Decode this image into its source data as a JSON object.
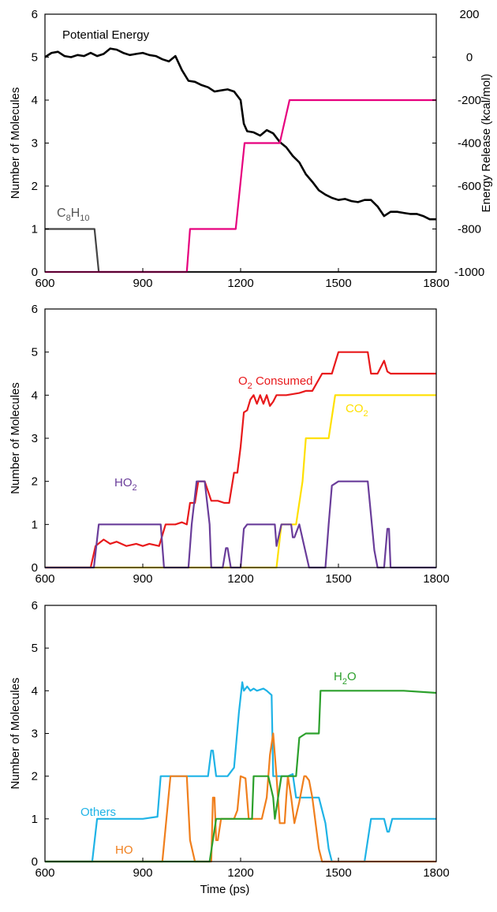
{
  "chart_data": [
    {
      "type": "line",
      "xlim": [
        600,
        1800
      ],
      "ylim": [
        0,
        6
      ],
      "y2lim": [
        -1000,
        200
      ],
      "x_ticks": [
        "600",
        "900",
        "1200",
        "1500",
        "1800"
      ],
      "y_ticks": [
        "0",
        "1",
        "2",
        "3",
        "4",
        "5",
        "6"
      ],
      "y2_ticks": [
        "-1000",
        "-800",
        "-600",
        "-400",
        "-200",
        "0",
        "200"
      ],
      "ylabel": "Number of Molecules",
      "y2label": "Energy Release (kcal/mol)",
      "grid": false,
      "series": [
        {
          "name": "Potential Energy",
          "axis": "right",
          "color": "#000000",
          "x": [
            600,
            620,
            640,
            660,
            680,
            700,
            720,
            740,
            760,
            780,
            800,
            820,
            840,
            860,
            880,
            900,
            920,
            940,
            960,
            980,
            1000,
            1020,
            1040,
            1060,
            1080,
            1100,
            1120,
            1140,
            1160,
            1180,
            1200,
            1210,
            1220,
            1240,
            1260,
            1280,
            1300,
            1320,
            1340,
            1360,
            1380,
            1400,
            1420,
            1440,
            1460,
            1480,
            1500,
            1520,
            1540,
            1560,
            1580,
            1600,
            1620,
            1640,
            1660,
            1680,
            1700,
            1720,
            1740,
            1760,
            1780,
            1800
          ],
          "values": [
            0,
            20,
            25,
            5,
            0,
            10,
            5,
            20,
            5,
            15,
            40,
            35,
            20,
            10,
            15,
            20,
            10,
            5,
            -10,
            -20,
            5,
            -60,
            -110,
            -115,
            -130,
            -140,
            -160,
            -155,
            -150,
            -160,
            -200,
            -310,
            -345,
            -350,
            -365,
            -340,
            -355,
            -395,
            -420,
            -460,
            -490,
            -545,
            -580,
            -620,
            -640,
            -655,
            -665,
            -660,
            -670,
            -675,
            -665,
            -665,
            -695,
            -740,
            -720,
            -720,
            -725,
            -730,
            -730,
            -740,
            -755,
            -755
          ]
        },
        {
          "name": "C8H10",
          "axis": "left",
          "color": "#444444",
          "x": [
            600,
            752,
            765,
            1800
          ],
          "values": [
            1,
            1,
            0,
            0
          ]
        },
        {
          "name": "",
          "axis": "left",
          "color": "#e6007e",
          "x": [
            600,
            1035,
            1045,
            1185,
            1212,
            1320,
            1350,
            1800
          ],
          "values": [
            0,
            0,
            1,
            1,
            3,
            3,
            4,
            4
          ]
        }
      ],
      "annotations": [
        {
          "text": "Potential Energy",
          "series": "Potential Energy"
        },
        {
          "text_main": "C",
          "sub1": "8",
          "text_mid": "H",
          "sub2": "10",
          "series": "C8H10"
        }
      ]
    },
    {
      "type": "line",
      "xlim": [
        600,
        1800
      ],
      "ylim": [
        0,
        6
      ],
      "x_ticks": [
        "600",
        "900",
        "1200",
        "1500",
        "1800"
      ],
      "y_ticks": [
        "0",
        "1",
        "2",
        "3",
        "4",
        "5",
        "6"
      ],
      "ylabel": "Number of Molecules",
      "grid": false,
      "series": [
        {
          "name": "O2 Consumed",
          "color": "#e8191b",
          "x": [
            600,
            740,
            755,
            780,
            800,
            820,
            850,
            880,
            900,
            920,
            950,
            970,
            1000,
            1020,
            1035,
            1045,
            1060,
            1070,
            1090,
            1110,
            1130,
            1150,
            1165,
            1180,
            1190,
            1200,
            1210,
            1220,
            1230,
            1240,
            1250,
            1260,
            1270,
            1280,
            1290,
            1300,
            1310,
            1320,
            1340,
            1380,
            1400,
            1420,
            1450,
            1480,
            1500,
            1530,
            1560,
            1590,
            1600,
            1620,
            1640,
            1650,
            1660,
            1680,
            1720,
            1760,
            1800
          ],
          "values": [
            0,
            0,
            0.5,
            0.65,
            0.55,
            0.6,
            0.5,
            0.55,
            0.5,
            0.55,
            0.5,
            1.0,
            1.0,
            1.05,
            1.0,
            1.5,
            1.5,
            2.0,
            2.0,
            1.55,
            1.55,
            1.5,
            1.5,
            2.2,
            2.2,
            2.8,
            3.6,
            3.65,
            3.9,
            4.0,
            3.8,
            4.0,
            3.8,
            4.0,
            3.75,
            3.85,
            4.0,
            4.0,
            4.0,
            4.05,
            4.1,
            4.1,
            4.5,
            4.5,
            5.0,
            5.0,
            5.0,
            5.0,
            4.5,
            4.5,
            4.8,
            4.55,
            4.5,
            4.5,
            4.5,
            4.5,
            4.5
          ]
        },
        {
          "name": "CO2",
          "color": "#ffe000",
          "x": [
            600,
            1310,
            1325,
            1370,
            1390,
            1400,
            1420,
            1440,
            1470,
            1490,
            1800
          ],
          "values": [
            0,
            0,
            1,
            1,
            2.0,
            3,
            3,
            3,
            3,
            4,
            4
          ]
        },
        {
          "name": "HO2",
          "color": "#6a3d9a",
          "x": [
            600,
            750,
            765,
            955,
            965,
            1040,
            1050,
            1065,
            1090,
            1105,
            1110,
            1120,
            1145,
            1155,
            1160,
            1170,
            1175,
            1200,
            1210,
            1220,
            1245,
            1290,
            1305,
            1310,
            1325,
            1355,
            1360,
            1365,
            1380,
            1395,
            1410,
            1425,
            1440,
            1460,
            1470,
            1480,
            1500,
            1530,
            1580,
            1590,
            1610,
            1620,
            1640,
            1650,
            1655,
            1660,
            1800
          ],
          "values": [
            0,
            0,
            1,
            1,
            0,
            0,
            1,
            2,
            2,
            1,
            0,
            0,
            0,
            0.45,
            0.45,
            0,
            0,
            0,
            0.9,
            1,
            1,
            1,
            1,
            0.5,
            1,
            1,
            0.7,
            0.7,
            1,
            0.5,
            0,
            0,
            0,
            0,
            1,
            1.9,
            2,
            2,
            2,
            2,
            0.4,
            0,
            0,
            0.9,
            0.9,
            0,
            0
          ]
        }
      ],
      "annotations": [
        {
          "text_main": "O",
          "sub": "2",
          "text_rest": " Consumed",
          "series": "O2 Consumed"
        },
        {
          "text_main": "CO",
          "sub": "2",
          "series": "CO2"
        },
        {
          "text_main": "HO",
          "sub": "2",
          "series": "HO2"
        }
      ]
    },
    {
      "type": "line",
      "xlim": [
        600,
        1800
      ],
      "ylim": [
        0,
        6
      ],
      "x_ticks": [
        "600",
        "900",
        "1200",
        "1500",
        "1800"
      ],
      "y_ticks": [
        "0",
        "1",
        "2",
        "3",
        "4",
        "5",
        "6"
      ],
      "ylabel": "Number of Molecules",
      "xlabel": "Time (ps)",
      "grid": false,
      "series": [
        {
          "name": "Others",
          "color": "#1fb3e6",
          "x": [
            600,
            745,
            760,
            900,
            945,
            955,
            1040,
            1100,
            1110,
            1115,
            1125,
            1150,
            1160,
            1180,
            1195,
            1205,
            1210,
            1220,
            1230,
            1240,
            1250,
            1270,
            1280,
            1295,
            1300,
            1310,
            1320,
            1345,
            1360,
            1370,
            1395,
            1410,
            1420,
            1440,
            1460,
            1470,
            1480,
            1500,
            1520,
            1580,
            1590,
            1600,
            1640,
            1650,
            1655,
            1665,
            1680,
            1720,
            1760,
            1800
          ],
          "values": [
            0,
            0,
            1,
            1,
            1.05,
            2,
            2,
            2,
            2.6,
            2.6,
            2,
            2,
            2.0,
            2.2,
            3.5,
            4.2,
            4.0,
            4.1,
            4.0,
            4.05,
            4.0,
            4.05,
            4.0,
            3.9,
            2.0,
            2.0,
            2.0,
            2.0,
            2.05,
            1.5,
            1.5,
            1.5,
            1.5,
            1.5,
            0.9,
            0.3,
            0,
            0,
            0,
            0,
            0.5,
            1,
            1,
            0.7,
            0.7,
            1.0,
            1,
            1,
            1,
            1
          ]
        },
        {
          "name": "HO",
          "color": "#f07f1d",
          "x": [
            600,
            955,
            960,
            985,
            1000,
            1020,
            1035,
            1045,
            1060,
            1070,
            1100,
            1110,
            1115,
            1120,
            1125,
            1130,
            1140,
            1160,
            1180,
            1190,
            1200,
            1215,
            1225,
            1245,
            1255,
            1265,
            1280,
            1290,
            1300,
            1310,
            1320,
            1335,
            1340,
            1345,
            1355,
            1365,
            1380,
            1395,
            1400,
            1410,
            1420,
            1440,
            1450,
            1800
          ],
          "values": [
            0,
            0,
            0,
            2,
            2,
            2,
            2,
            0.5,
            0,
            0,
            0,
            0,
            1.5,
            1.5,
            0.5,
            0.5,
            1,
            1,
            1,
            1.2,
            2,
            1.95,
            1.0,
            1.0,
            1.0,
            1.0,
            1.5,
            2.5,
            3.0,
            2.0,
            0.9,
            0.9,
            1.5,
            2,
            1.5,
            0.9,
            1.4,
            2.0,
            2.0,
            1.9,
            1.5,
            0.3,
            0,
            0
          ]
        },
        {
          "name": "H2O",
          "color": "#2ca02c",
          "x": [
            600,
            1105,
            1125,
            1180,
            1200,
            1235,
            1240,
            1285,
            1300,
            1305,
            1325,
            1340,
            1350,
            1370,
            1380,
            1400,
            1420,
            1440,
            1445,
            1480,
            1500,
            1600,
            1700,
            1800
          ],
          "values": [
            0,
            0,
            1,
            1,
            1,
            1,
            2,
            2,
            1.5,
            1.0,
            2,
            2,
            2,
            2,
            2.9,
            3.0,
            3.0,
            3.0,
            4,
            4,
            4,
            4,
            4,
            3.95
          ]
        }
      ],
      "annotations": [
        {
          "text_main": "H",
          "sub": "2",
          "text_rest": "O",
          "series": "H2O"
        },
        {
          "text": "Others",
          "series": "Others"
        },
        {
          "text": "HO",
          "series": "HO"
        }
      ]
    }
  ]
}
